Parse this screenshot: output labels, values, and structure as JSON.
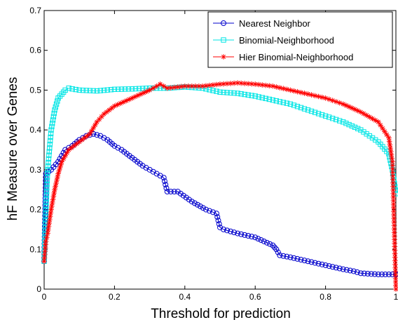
{
  "chart_data": {
    "type": "line",
    "title": "",
    "xlabel": "Threshold for prediction",
    "ylabel": "hF Measure over Genes",
    "xlim": [
      0,
      1
    ],
    "ylim": [
      0,
      0.7
    ],
    "xticks": [
      0,
      0.2,
      0.4,
      0.6,
      0.8,
      1
    ],
    "xtick_labels": [
      "0",
      "0.2",
      "0.4",
      "0.6",
      "0.8",
      "1"
    ],
    "yticks": [
      0,
      0.1,
      0.2,
      0.3,
      0.4,
      0.5,
      0.6,
      0.7
    ],
    "ytick_labels": [
      "0",
      "0.1",
      "0.2",
      "0.3",
      "0.4",
      "0.5",
      "0.6",
      "0.7"
    ],
    "grid": false,
    "legend_position": "top-right",
    "series": [
      {
        "name": "Nearest Neighbor",
        "color": "#0000cc",
        "marker": "circle",
        "x": [
          0,
          0.005,
          0.02,
          0.04,
          0.06,
          0.08,
          0.1,
          0.12,
          0.14,
          0.16,
          0.18,
          0.2,
          0.22,
          0.25,
          0.28,
          0.3,
          0.32,
          0.34,
          0.35,
          0.38,
          0.42,
          0.46,
          0.49,
          0.5,
          0.51,
          0.55,
          0.6,
          0.65,
          0.66,
          0.67,
          0.7,
          0.75,
          0.8,
          0.85,
          0.88,
          0.9,
          0.95,
          1.0
        ],
        "y": [
          0.07,
          0.29,
          0.3,
          0.32,
          0.35,
          0.36,
          0.375,
          0.385,
          0.39,
          0.385,
          0.375,
          0.36,
          0.35,
          0.33,
          0.31,
          0.3,
          0.29,
          0.28,
          0.245,
          0.245,
          0.22,
          0.2,
          0.19,
          0.155,
          0.15,
          0.14,
          0.13,
          0.11,
          0.1,
          0.085,
          0.08,
          0.07,
          0.06,
          0.05,
          0.045,
          0.04,
          0.037,
          0.037
        ]
      },
      {
        "name": "Binomial-Neighborhood",
        "color": "#00e5e5",
        "marker": "square",
        "x": [
          0,
          0.005,
          0.01,
          0.02,
          0.03,
          0.04,
          0.05,
          0.06,
          0.07,
          0.08,
          0.1,
          0.15,
          0.2,
          0.25,
          0.3,
          0.35,
          0.4,
          0.45,
          0.5,
          0.55,
          0.6,
          0.65,
          0.7,
          0.75,
          0.8,
          0.85,
          0.9,
          0.95,
          0.98,
          0.99,
          1.0
        ],
        "y": [
          0.07,
          0.2,
          0.3,
          0.4,
          0.45,
          0.48,
          0.49,
          0.5,
          0.505,
          0.503,
          0.5,
          0.498,
          0.502,
          0.503,
          0.505,
          0.505,
          0.508,
          0.505,
          0.495,
          0.492,
          0.485,
          0.475,
          0.465,
          0.45,
          0.435,
          0.42,
          0.4,
          0.37,
          0.34,
          0.3,
          0.24
        ]
      },
      {
        "name": "Hier Binomial-Neighborhood",
        "color": "#ff0000",
        "marker": "star",
        "x": [
          0,
          0.005,
          0.01,
          0.02,
          0.03,
          0.04,
          0.05,
          0.07,
          0.1,
          0.13,
          0.15,
          0.17,
          0.2,
          0.25,
          0.3,
          0.33,
          0.35,
          0.4,
          0.45,
          0.5,
          0.55,
          0.6,
          0.65,
          0.7,
          0.75,
          0.8,
          0.85,
          0.9,
          0.95,
          0.98,
          0.99,
          1.0
        ],
        "y": [
          0.07,
          0.12,
          0.14,
          0.2,
          0.25,
          0.29,
          0.32,
          0.35,
          0.37,
          0.39,
          0.42,
          0.44,
          0.46,
          0.48,
          0.5,
          0.515,
          0.505,
          0.51,
          0.51,
          0.515,
          0.518,
          0.515,
          0.51,
          0.5,
          0.49,
          0.48,
          0.465,
          0.445,
          0.42,
          0.38,
          0.32,
          0
        ]
      }
    ]
  }
}
